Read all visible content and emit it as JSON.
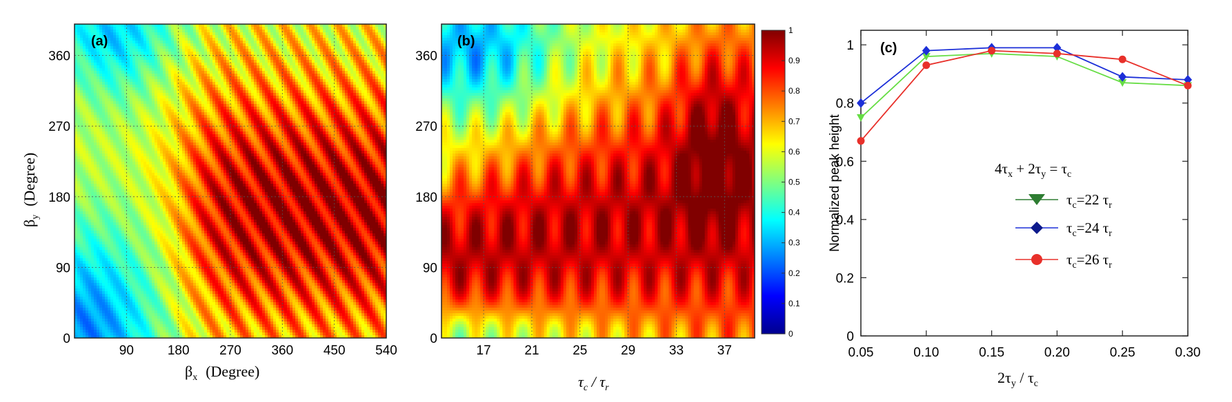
{
  "chart_data": [
    {
      "panel_label": "(a)",
      "type": "heatmap",
      "xlabel": "βx (Degree)",
      "xlabel_main": "β",
      "xlabel_sub": "x",
      "xlabel_unit": "(Degree)",
      "ylabel": "βy (Degree)",
      "ylabel_main": "β",
      "ylabel_sub": "y",
      "ylabel_unit": "(Degree)",
      "xlim": [
        0,
        540
      ],
      "ylim": [
        0,
        400
      ],
      "x_ticks": [
        90,
        180,
        270,
        360,
        450,
        540
      ],
      "y_ticks": [
        0,
        90,
        180,
        270,
        360
      ],
      "grid": true,
      "pattern": "diagonal ridges; high values concentrated for x 180-540, y 30-310; low values near origin and top-left"
    },
    {
      "panel_label": "(b)",
      "type": "heatmap",
      "xlabel": "τc / τr",
      "xlabel_parts": [
        "τ",
        "c",
        " / τ",
        "r"
      ],
      "ylabel": "",
      "xlim": [
        13.5,
        39.5
      ],
      "ylim": [
        0,
        400
      ],
      "x_ticks": [
        17,
        21,
        25,
        29,
        33,
        37
      ],
      "y_ticks": [
        0,
        90,
        180,
        270,
        360
      ],
      "grid": true,
      "pattern": "high values band y 40-200 across x, extending to y 320 for x 30-39; low values top-left and bottom"
    },
    {
      "panel_label": "(c)",
      "type": "line",
      "xlabel": "2τy / τc",
      "xlabel_parts": [
        "2τ",
        "y",
        " / τ",
        "c"
      ],
      "ylabel": "Normalized peak height",
      "xlim": [
        0.05,
        0.3
      ],
      "ylim": [
        0,
        1.05
      ],
      "x_ticks": [
        "0.05",
        "0.10",
        "0.15",
        "0.20",
        "0.25",
        "0.30"
      ],
      "y_ticks": [
        "0",
        "0.2",
        "0.4",
        "0.6",
        "0.8",
        "1"
      ],
      "legend_title_parts": [
        "4τ",
        "x",
        " + 2τ",
        "y",
        " = τ",
        "c"
      ],
      "legend_position": "center-right",
      "x": [
        0.05,
        0.1,
        0.15,
        0.2,
        0.25,
        0.3
      ],
      "series": [
        {
          "name": "τc=22 τr",
          "name_parts": [
            "τ",
            "c",
            "=22 τ",
            "r"
          ],
          "color": "#66dd44",
          "line_color": "#2e7d32",
          "marker": "triangle-down",
          "values": [
            0.75,
            0.96,
            0.97,
            0.96,
            0.87,
            0.86
          ]
        },
        {
          "name": "τc=24 τr",
          "name_parts": [
            "τ",
            "c",
            "=24 τ",
            "r"
          ],
          "color": "#1c2fd8",
          "line_color": "#1c2fd8",
          "marker": "diamond",
          "values": [
            0.8,
            0.98,
            0.99,
            0.99,
            0.89,
            0.88
          ]
        },
        {
          "name": "τc=26 τr",
          "name_parts": [
            "τ",
            "c",
            "=26 τ",
            "r"
          ],
          "color": "#e8302a",
          "line_color": "#e8302a",
          "marker": "circle",
          "values": [
            0.67,
            0.93,
            0.98,
            0.97,
            0.95,
            0.86
          ]
        }
      ]
    }
  ],
  "colorbar": {
    "ticks": [
      "0",
      "0.1",
      "0.2",
      "0.3",
      "0.4",
      "0.5",
      "0.6",
      "0.7",
      "0.8",
      "0.9",
      "1"
    ],
    "colormap": "jet",
    "range": [
      0,
      1
    ]
  }
}
